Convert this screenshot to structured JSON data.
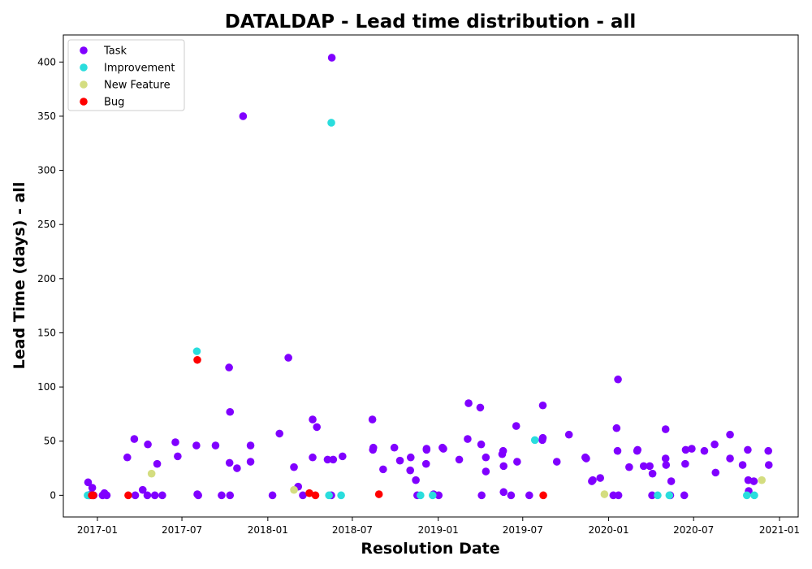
{
  "chart_data": {
    "type": "scatter",
    "title": "DATALDAP - Lead time distribution - all",
    "xlabel": "Resolution Date",
    "ylabel": "Lead Time (days) - all",
    "xlim": [
      "2016-10-20",
      "2021-02-10"
    ],
    "ylim": [
      -20,
      425
    ],
    "x_ticks": [
      "2017-01",
      "2017-07",
      "2018-01",
      "2018-07",
      "2019-01",
      "2019-07",
      "2020-01",
      "2020-07",
      "2021-01"
    ],
    "y_ticks": [
      0,
      50,
      100,
      150,
      200,
      250,
      300,
      350,
      400
    ],
    "legend_position": "top-left",
    "grid": false,
    "series": [
      {
        "name": "Task",
        "color": "#8000ff",
        "points": [
          [
            "2016-12-12",
            12
          ],
          [
            "2016-12-14",
            0
          ],
          [
            "2016-12-18",
            1
          ],
          [
            "2016-12-21",
            7
          ],
          [
            "2016-12-24",
            0
          ],
          [
            "2017-01-12",
            0
          ],
          [
            "2017-01-16",
            2
          ],
          [
            "2017-01-21",
            0
          ],
          [
            "2017-03-06",
            35
          ],
          [
            "2017-03-21",
            52
          ],
          [
            "2017-03-23",
            0
          ],
          [
            "2017-04-08",
            5
          ],
          [
            "2017-04-18",
            0
          ],
          [
            "2017-04-19",
            47
          ],
          [
            "2017-05-04",
            0
          ],
          [
            "2017-05-09",
            29
          ],
          [
            "2017-05-20",
            0
          ],
          [
            "2017-06-17",
            49
          ],
          [
            "2017-06-22",
            36
          ],
          [
            "2017-08-01",
            46
          ],
          [
            "2017-08-03",
            1
          ],
          [
            "2017-08-05",
            0
          ],
          [
            "2017-09-11",
            46
          ],
          [
            "2017-09-24",
            0
          ],
          [
            "2017-10-10",
            118
          ],
          [
            "2017-10-11",
            30
          ],
          [
            "2017-10-12",
            0
          ],
          [
            "2017-10-12",
            77
          ],
          [
            "2017-10-27",
            25
          ],
          [
            "2017-11-09",
            350
          ],
          [
            "2017-11-25",
            31
          ],
          [
            "2017-11-25",
            46
          ],
          [
            "2018-01-11",
            0
          ],
          [
            "2018-01-26",
            57
          ],
          [
            "2018-02-14",
            127
          ],
          [
            "2018-02-26",
            26
          ],
          [
            "2018-03-07",
            8
          ],
          [
            "2018-03-17",
            0
          ],
          [
            "2018-04-07",
            70
          ],
          [
            "2018-04-07",
            35
          ],
          [
            "2018-04-16",
            63
          ],
          [
            "2018-05-09",
            33
          ],
          [
            "2018-05-17",
            0
          ],
          [
            "2018-05-18",
            404
          ],
          [
            "2018-05-21",
            33
          ],
          [
            "2018-06-10",
            36
          ],
          [
            "2018-08-13",
            70
          ],
          [
            "2018-08-14",
            42
          ],
          [
            "2018-08-15",
            44
          ],
          [
            "2018-09-05",
            24
          ],
          [
            "2018-09-29",
            44
          ],
          [
            "2018-10-11",
            32
          ],
          [
            "2018-11-03",
            35
          ],
          [
            "2018-11-02",
            23
          ],
          [
            "2018-11-14",
            14
          ],
          [
            "2018-11-17",
            0
          ],
          [
            "2018-12-06",
            29
          ],
          [
            "2018-12-07",
            43
          ],
          [
            "2018-12-07",
            42
          ],
          [
            "2018-12-22",
            1
          ],
          [
            "2019-01-02",
            0
          ],
          [
            "2019-01-10",
            44
          ],
          [
            "2019-01-12",
            43
          ],
          [
            "2019-02-15",
            33
          ],
          [
            "2019-03-05",
            52
          ],
          [
            "2019-03-07",
            85
          ],
          [
            "2019-04-01",
            81
          ],
          [
            "2019-04-03",
            47
          ],
          [
            "2019-04-04",
            0
          ],
          [
            "2019-04-13",
            35
          ],
          [
            "2019-04-13",
            22
          ],
          [
            "2019-05-18",
            38
          ],
          [
            "2019-05-20",
            41
          ],
          [
            "2019-05-21",
            27
          ],
          [
            "2019-05-21",
            3
          ],
          [
            "2019-06-06",
            0
          ],
          [
            "2019-06-19",
            31
          ],
          [
            "2019-06-17",
            64
          ],
          [
            "2019-07-15",
            0
          ],
          [
            "2019-08-12",
            51
          ],
          [
            "2019-08-13",
            53
          ],
          [
            "2019-08-13",
            83
          ],
          [
            "2019-09-12",
            31
          ],
          [
            "2019-10-08",
            56
          ],
          [
            "2019-11-12",
            35
          ],
          [
            "2019-11-14",
            34
          ],
          [
            "2019-11-26",
            13
          ],
          [
            "2019-11-28",
            14
          ],
          [
            "2019-12-14",
            16
          ],
          [
            "2020-01-11",
            0
          ],
          [
            "2020-01-18",
            62
          ],
          [
            "2020-01-20",
            41
          ],
          [
            "2020-01-21",
            107
          ],
          [
            "2020-01-22",
            0
          ],
          [
            "2020-02-14",
            26
          ],
          [
            "2020-03-02",
            41
          ],
          [
            "2020-03-03",
            42
          ],
          [
            "2020-03-16",
            27
          ],
          [
            "2020-03-29",
            27
          ],
          [
            "2020-04-03",
            0
          ],
          [
            "2020-04-04",
            20
          ],
          [
            "2020-05-02",
            61
          ],
          [
            "2020-05-02",
            34
          ],
          [
            "2020-05-03",
            28
          ],
          [
            "2020-05-12",
            0
          ],
          [
            "2020-05-14",
            13
          ],
          [
            "2020-06-11",
            0
          ],
          [
            "2020-06-13",
            29
          ],
          [
            "2020-06-14",
            42
          ],
          [
            "2020-06-27",
            43
          ],
          [
            "2020-07-24",
            41
          ],
          [
            "2020-08-15",
            47
          ],
          [
            "2020-08-17",
            21
          ],
          [
            "2020-09-17",
            56
          ],
          [
            "2020-09-17",
            34
          ],
          [
            "2020-10-14",
            28
          ],
          [
            "2020-10-25",
            42
          ],
          [
            "2020-10-26",
            14
          ],
          [
            "2020-10-27",
            4
          ],
          [
            "2020-11-07",
            13
          ],
          [
            "2020-12-08",
            41
          ],
          [
            "2020-12-09",
            28
          ]
        ]
      },
      {
        "name": "Improvement",
        "color": "#2adddd",
        "points": [
          [
            "2016-12-11",
            0
          ],
          [
            "2016-12-15",
            0
          ],
          [
            "2017-08-02",
            133
          ],
          [
            "2018-05-12",
            0
          ],
          [
            "2018-05-17",
            344
          ],
          [
            "2018-06-07",
            0
          ],
          [
            "2018-11-24",
            0
          ],
          [
            "2018-12-20",
            0
          ],
          [
            "2019-07-27",
            51
          ],
          [
            "2020-04-15",
            0
          ],
          [
            "2020-05-10",
            0
          ],
          [
            "2020-10-23",
            0
          ],
          [
            "2020-11-08",
            0
          ]
        ]
      },
      {
        "name": "New Feature",
        "color": "#d4dd80",
        "points": [
          [
            "2017-04-27",
            20
          ],
          [
            "2018-02-26",
            5
          ],
          [
            "2019-12-23",
            1
          ],
          [
            "2020-11-24",
            14
          ]
        ]
      },
      {
        "name": "Bug",
        "color": "#ff0000",
        "points": [
          [
            "2016-12-20",
            0
          ],
          [
            "2016-12-23",
            0
          ],
          [
            "2017-03-08",
            0
          ],
          [
            "2017-08-03",
            125
          ],
          [
            "2018-03-31",
            2
          ],
          [
            "2018-04-13",
            0
          ],
          [
            "2018-08-27",
            1
          ],
          [
            "2019-08-14",
            0
          ]
        ]
      }
    ]
  }
}
